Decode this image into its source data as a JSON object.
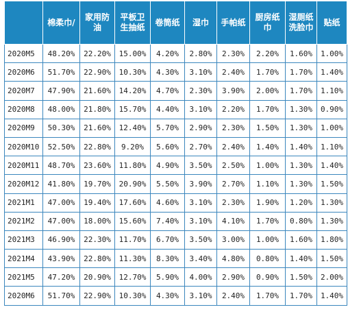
{
  "table": {
    "headers": [
      "",
      "棉柔巾/",
      "家用防油",
      "平板卫生抽纸",
      "卷筒纸",
      "湿巾",
      "手帕纸",
      "厨房纸巾",
      "湿厕纸洗脸巾",
      "贴纸"
    ],
    "rows": [
      [
        "2020M5",
        "48.20%",
        "22.20%",
        "15.00%",
        "4.20%",
        "2.80%",
        "2.30%",
        "2.20%",
        "1.60%",
        "1.00%"
      ],
      [
        "2020M6",
        "51.70%",
        "22.90%",
        "10.30%",
        "4.30%",
        "3.10%",
        "2.40%",
        "1.70%",
        "1.70%",
        "1.40%"
      ],
      [
        "2020M7",
        "47.90%",
        "21.60%",
        "14.20%",
        "4.70%",
        "2.30%",
        "3.90%",
        "2.00%",
        "1.70%",
        "1.10%"
      ],
      [
        "2020M8",
        "48.00%",
        "21.80%",
        "15.70%",
        "4.40%",
        "3.10%",
        "2.20%",
        "1.70%",
        "1.30%",
        "0.90%"
      ],
      [
        "2020M9",
        "50.30%",
        "21.60%",
        "12.40%",
        "5.70%",
        "2.90%",
        "2.30%",
        "1.50%",
        "1.30%",
        "1.00%"
      ],
      [
        "2020M10",
        "52.50%",
        "22.80%",
        "9.20%",
        "5.60%",
        "2.70%",
        "2.40%",
        "1.40%",
        "1.40%",
        "1.10%"
      ],
      [
        "2020M11",
        "48.70%",
        "23.60%",
        "11.80%",
        "4.90%",
        "3.50%",
        "2.50%",
        "1.00%",
        "1.30%",
        "1.40%"
      ],
      [
        "2020M12",
        "41.80%",
        "19.70%",
        "20.90%",
        "5.50%",
        "3.90%",
        "2.70%",
        "1.10%",
        "1.30%",
        "1.50%"
      ],
      [
        "2021M1",
        "47.00%",
        "19.40%",
        "17.60%",
        "4.60%",
        "3.10%",
        "2.30%",
        "1.90%",
        "1.20%",
        "1.30%"
      ],
      [
        "2021M2",
        "47.00%",
        "18.00%",
        "15.60%",
        "7.40%",
        "3.10%",
        "4.10%",
        "1.70%",
        "0.80%",
        "1.30%"
      ],
      [
        "2021M3",
        "46.90%",
        "22.30%",
        "11.70%",
        "6.70%",
        "3.50%",
        "3.00%",
        "1.00%",
        "1.60%",
        "1.80%"
      ],
      [
        "2021M4",
        "43.90%",
        "22.80%",
        "11.30%",
        "8.30%",
        "3.40%",
        "4.80%",
        "0.80%",
        "1.40%",
        "1.50%"
      ],
      [
        "2021M5",
        "47.20%",
        "20.90%",
        "12.70%",
        "5.90%",
        "4.00%",
        "2.90%",
        "0.90%",
        "1.50%",
        "2.00%"
      ],
      [
        "2020M6",
        "51.70%",
        "22.90%",
        "10.30%",
        "4.30%",
        "3.10%",
        "2.40%",
        "1.70%",
        "1.70%",
        "1.40%"
      ]
    ]
  },
  "colors": {
    "header_background": "#1e87c0",
    "header_text": "#ffffff",
    "grid_border": "#3a86bd"
  }
}
